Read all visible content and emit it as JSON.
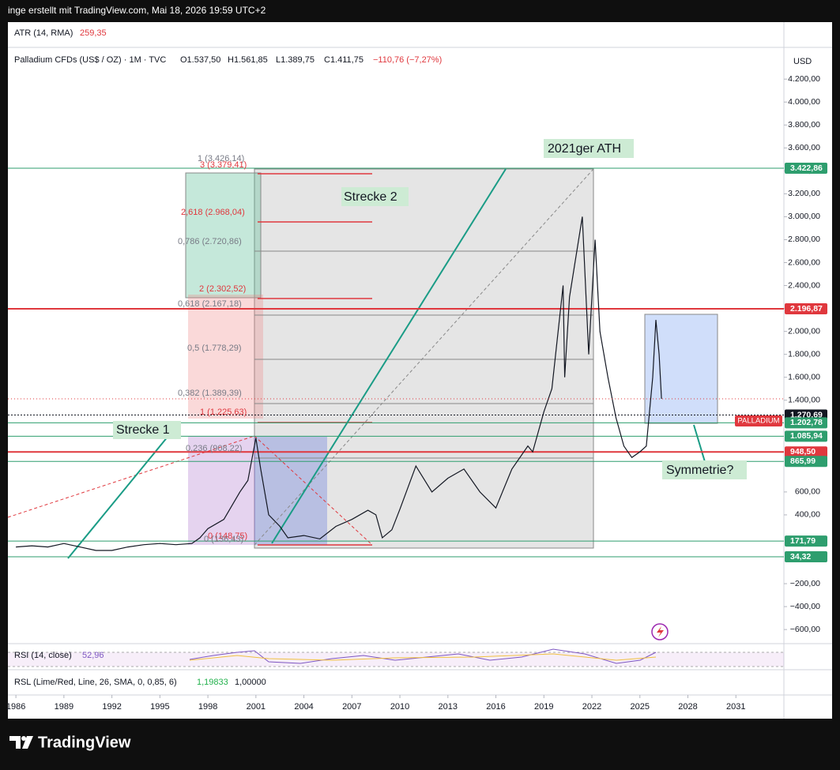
{
  "header": {
    "credit": "inge erstellt mit TradingView.com, Mai 18, 2026 19:59 UTC+2"
  },
  "atr": {
    "name": "ATR (14, RMA)",
    "value": "259,35"
  },
  "legend": {
    "symbol": "Palladium CFDs (US$ / OZ) · 1M · TVC",
    "open": "O1.537,50",
    "high": "H1.561,85",
    "low": "L1.389,75",
    "close": "C1.411,75",
    "change": "−110,76 (−7,27%)"
  },
  "currency": "USD",
  "chart_data": {
    "type": "line",
    "color": "#131722",
    "x": [
      1986,
      1987,
      1988,
      1989,
      1990,
      1991,
      1992,
      1993,
      1994,
      1995,
      1996,
      1997,
      1997.5,
      1998,
      1999,
      2000,
      2000.5,
      2001,
      2001.3,
      2001.8,
      2002.5,
      2003,
      2004,
      2005,
      2006,
      2007,
      2008,
      2008.5,
      2008.9,
      2009.5,
      2010,
      2011,
      2012,
      2013,
      2014,
      2015,
      2016,
      2017,
      2018,
      2018.3,
      2019,
      2019.5,
      2020.2,
      2020.3,
      2020.6,
      2021.4,
      2021.8,
      2022.2,
      2022.5,
      2023,
      2023.5,
      2024,
      2024.5,
      2025,
      2025.4,
      2025.8,
      2026,
      2026.2,
      2026.35
    ],
    "values": [
      120,
      130,
      120,
      150,
      120,
      90,
      90,
      120,
      140,
      150,
      140,
      150,
      200,
      280,
      360,
      600,
      700,
      1070,
      800,
      400,
      300,
      200,
      220,
      190,
      300,
      360,
      440,
      400,
      200,
      270,
      450,
      826,
      600,
      720,
      800,
      600,
      460,
      800,
      1000,
      950,
      1300,
      1500,
      2400,
      1600,
      2300,
      3000,
      1800,
      2800,
      2000,
      1600,
      1250,
      1000,
      900,
      950,
      1000,
      1600,
      2100,
      1800,
      1412
    ],
    "xlim": [
      1985.5,
      2034
    ],
    "ylim": [
      -723,
      4463
    ],
    "xticks": [
      1986,
      1989,
      1992,
      1995,
      1998,
      2001,
      2004,
      2007,
      2010,
      2013,
      2016,
      2019,
      2022,
      2025,
      2028,
      2031
    ],
    "yticks": [
      {
        "value": 4200,
        "label": "4.200,00"
      },
      {
        "value": 4000,
        "label": "4.000,00"
      },
      {
        "value": 3800,
        "label": "3.800,00"
      },
      {
        "value": 3600,
        "label": "3.600,00"
      },
      {
        "value": 3400,
        "label": "3.400,00"
      },
      {
        "value": 3200,
        "label": "3.200,00"
      },
      {
        "value": 3000,
        "label": "3.000,00"
      },
      {
        "value": 2800,
        "label": "2.800,00"
      },
      {
        "value": 2600,
        "label": "2.600,00"
      },
      {
        "value": 2400,
        "label": "2.400,00"
      },
      {
        "value": 2200,
        "label": "2.200,00"
      },
      {
        "value": 2000,
        "label": "2.000,00"
      },
      {
        "value": 1800,
        "label": "1.800,00"
      },
      {
        "value": 1600,
        "label": "1.600,00"
      },
      {
        "value": 1400,
        "label": "1.400,00"
      },
      {
        "value": 600,
        "label": "600,00"
      },
      {
        "value": 400,
        "label": "400,00"
      },
      {
        "value": -200,
        "label": "−200,00"
      },
      {
        "value": -400,
        "label": "−400,00"
      },
      {
        "value": -600,
        "label": "−600,00"
      }
    ],
    "grid": false,
    "price_tags": [
      {
        "value": 3422.86,
        "label": "3.422,86",
        "color": "#2e9e6e"
      },
      {
        "value": 2196.87,
        "label": "2.196,87",
        "color": "#e0383e"
      },
      {
        "value": 1270.69,
        "label": "1.270,69",
        "color": "#131722"
      },
      {
        "value": 1202.78,
        "label": "1.202,78",
        "color": "#2e9e6e"
      },
      {
        "value": 1085.94,
        "label": "1.085,94",
        "color": "#2e9e6e"
      },
      {
        "value": 948.5,
        "label": "948,50",
        "color": "#e0383e"
      },
      {
        "value": 865.99,
        "label": "865,99",
        "color": "#2e9e6e"
      },
      {
        "value": 171.79,
        "label": "171,79",
        "color": "#2e9e6e"
      },
      {
        "value": 34.32,
        "label": "34,32",
        "color": "#2e9e6e"
      }
    ],
    "symbol_tag": "PALLADIUM"
  },
  "fib_labels": [
    "1 (3.426,14)",
    "3 (3.379,41)",
    "2,618 (2.968,04)",
    "0,786 (2.720,86)",
    "2 (2.302,52)",
    "0,618 (2.167,18)",
    "0,5 (1.778,29)",
    "0,382 (1.389,39)",
    "1 (1.225,63)",
    "0,236 (908,22)",
    "0 (148,75)",
    "0 (136,43)"
  ],
  "notes": [
    "2021ger ATH",
    "Strecke 2",
    "Strecke 1",
    "Symmetrie?"
  ],
  "rsi": {
    "name": "RSI (14, close)",
    "value": "52,96"
  },
  "rsl": {
    "name": "RSL (Lime/Red, Line, 26, SMA, 0, 0,85, 6)",
    "value": "1,19833",
    "level": "1,00000"
  },
  "footer": {
    "brand": "TradingView"
  }
}
